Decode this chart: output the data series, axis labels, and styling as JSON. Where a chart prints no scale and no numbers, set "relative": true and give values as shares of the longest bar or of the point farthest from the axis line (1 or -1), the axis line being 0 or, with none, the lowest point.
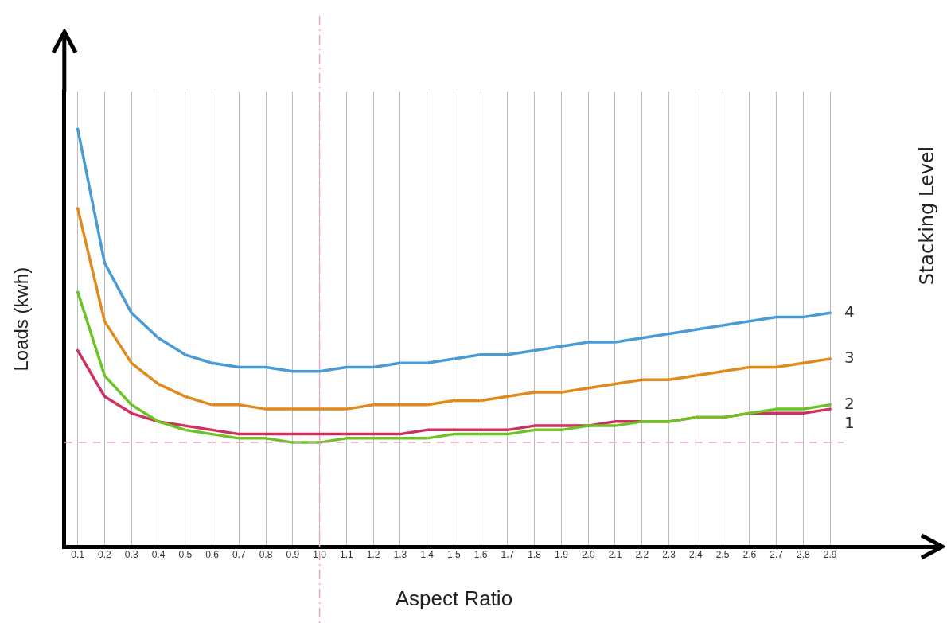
{
  "chart_data": {
    "type": "line",
    "relative": true,
    "xlabel": "Aspect Ratio",
    "ylabel": "Loads (kwh)",
    "y2label": "Stacking Level",
    "categories": [
      "0.1",
      "0.2",
      "0.3",
      "0.4",
      "0.5",
      "0.6",
      "0.7",
      "0.8",
      "0.9",
      "1.0",
      "1.1",
      "1.2",
      "1.3",
      "1.4",
      "1.5",
      "1.6",
      "1.7",
      "1.8",
      "1.9",
      "2.0",
      "2.1",
      "2.2",
      "2.3",
      "2.4",
      "2.5",
      "2.6",
      "2.7",
      "2.8",
      "2.9"
    ],
    "series": [
      {
        "name": "4",
        "color": "#4a9bd4",
        "values": [
          1.0,
          0.68,
          0.56,
          0.5,
          0.46,
          0.44,
          0.43,
          0.43,
          0.42,
          0.42,
          0.43,
          0.43,
          0.44,
          0.44,
          0.45,
          0.46,
          0.46,
          0.47,
          0.48,
          0.49,
          0.49,
          0.5,
          0.51,
          0.52,
          0.53,
          0.54,
          0.55,
          0.55,
          0.56
        ]
      },
      {
        "name": "3",
        "color": "#e08a1e",
        "values": [
          0.81,
          0.54,
          0.44,
          0.39,
          0.36,
          0.34,
          0.34,
          0.33,
          0.33,
          0.33,
          0.33,
          0.34,
          0.34,
          0.34,
          0.35,
          0.35,
          0.36,
          0.37,
          0.37,
          0.38,
          0.39,
          0.4,
          0.4,
          0.41,
          0.42,
          0.43,
          0.43,
          0.44,
          0.45
        ]
      },
      {
        "name": "2",
        "color": "#6cc424",
        "values": [
          0.61,
          0.41,
          0.34,
          0.3,
          0.28,
          0.27,
          0.26,
          0.26,
          0.25,
          0.25,
          0.26,
          0.26,
          0.26,
          0.26,
          0.27,
          0.27,
          0.27,
          0.28,
          0.28,
          0.29,
          0.29,
          0.3,
          0.3,
          0.31,
          0.31,
          0.32,
          0.33,
          0.33,
          0.34
        ]
      },
      {
        "name": "1",
        "color": "#d0305e",
        "values": [
          0.47,
          0.36,
          0.32,
          0.3,
          0.29,
          0.28,
          0.27,
          0.27,
          0.27,
          0.27,
          0.27,
          0.27,
          0.27,
          0.28,
          0.28,
          0.28,
          0.28,
          0.29,
          0.29,
          0.29,
          0.3,
          0.3,
          0.3,
          0.31,
          0.31,
          0.32,
          0.32,
          0.32,
          0.33
        ]
      }
    ],
    "ref_lines": [
      {
        "axis": "x",
        "value": "1.0",
        "color": "#e8a0c8",
        "line_style": "dashdot"
      },
      {
        "axis": "y",
        "value": 0.25,
        "color": "#e8a0c8",
        "line_style": "dashed"
      }
    ],
    "grid": "x",
    "marker": "none",
    "line_style": "solid",
    "legend": false
  }
}
